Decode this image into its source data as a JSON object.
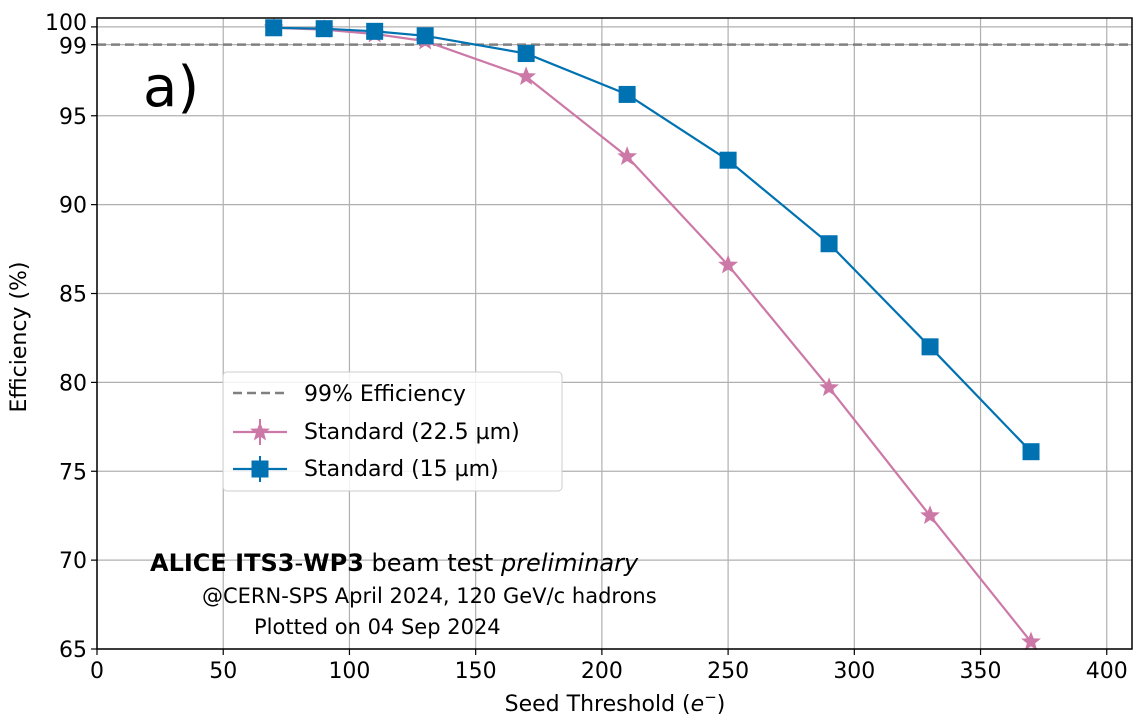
{
  "chart_data": {
    "type": "line",
    "panel_label": "a)",
    "xlabel": "Seed Threshold (",
    "xlabel_sym": "e",
    "xlabel_sup": "−",
    "xlabel_end": ")",
    "ylabel": "Efficiency (%)",
    "xlim": [
      0,
      410
    ],
    "ylim": [
      65,
      100.5
    ],
    "xticks": [
      0,
      50,
      100,
      150,
      200,
      250,
      300,
      350,
      400
    ],
    "yticks": [
      65,
      70,
      75,
      80,
      85,
      90,
      95,
      99,
      100
    ],
    "grid": true,
    "reference_line": {
      "name": "99% Efficiency",
      "y": 99,
      "color": "#808080",
      "style": "dashed"
    },
    "series": [
      {
        "name": "Standard (22.5 µm)",
        "color": "#CC79A7",
        "marker": "star",
        "x": [
          70,
          90,
          110,
          130,
          170,
          210,
          250,
          290,
          330,
          370
        ],
        "y": [
          99.95,
          99.85,
          99.6,
          99.2,
          97.2,
          92.7,
          86.6,
          79.7,
          72.5,
          65.4
        ]
      },
      {
        "name": "Standard (15 µm)",
        "color": "#0072B2",
        "marker": "square",
        "x": [
          70,
          90,
          110,
          130,
          170,
          210,
          250,
          290,
          330,
          370
        ],
        "y": [
          99.95,
          99.9,
          99.75,
          99.5,
          98.5,
          96.2,
          92.5,
          87.8,
          82.0,
          76.1
        ]
      }
    ],
    "legend_position": "center-left",
    "annotation": {
      "bold1": "ALICE ITS3",
      "sep": "-",
      "bold2": "WP3",
      "mid": " beam test ",
      "italic": "preliminary",
      "line2": "@CERN-SPS April 2024, 120 GeV/c hadrons",
      "line3": "Plotted on 04 Sep 2024"
    }
  }
}
